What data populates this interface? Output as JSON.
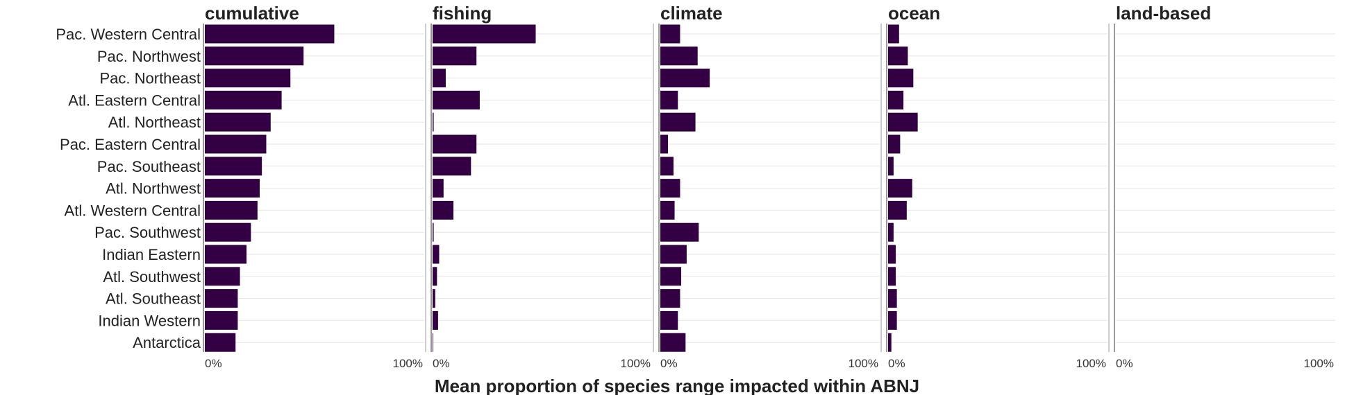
{
  "chart_data": {
    "type": "bar",
    "orientation": "horizontal",
    "xlabel": "Mean proportion of species range impacted within ABNJ",
    "ylabel": "",
    "xlim": [
      0,
      1
    ],
    "tick_labels": [
      "0%",
      "100%"
    ],
    "grid": true,
    "bar_color": "#330044",
    "categories": [
      "Pac. Western Central",
      "Pac. Northwest",
      "Pac. Northeast",
      "Atl. Eastern Central",
      "Atl. Northeast",
      "Pac. Eastern Central",
      "Pac. Southeast",
      "Atl. Northwest",
      "Atl. Western Central",
      "Pac. Southwest",
      "Indian Eastern",
      "Atl. Southwest",
      "Atl. Southeast",
      "Indian Western",
      "Antarctica"
    ],
    "panels": [
      {
        "name": "cumulative",
        "values": [
          0.59,
          0.45,
          0.39,
          0.35,
          0.3,
          0.28,
          0.26,
          0.25,
          0.24,
          0.21,
          0.19,
          0.16,
          0.15,
          0.15,
          0.14
        ]
      },
      {
        "name": "fishing",
        "values": [
          0.47,
          0.2,
          0.06,
          0.215,
          0.005,
          0.2,
          0.175,
          0.05,
          0.095,
          0.005,
          0.03,
          0.02,
          0.012,
          0.025,
          0.003
        ]
      },
      {
        "name": "climate",
        "values": [
          0.09,
          0.17,
          0.225,
          0.08,
          0.16,
          0.035,
          0.06,
          0.09,
          0.065,
          0.175,
          0.12,
          0.095,
          0.09,
          0.08,
          0.115
        ]
      },
      {
        "name": "ocean",
        "values": [
          0.05,
          0.09,
          0.115,
          0.07,
          0.135,
          0.055,
          0.025,
          0.11,
          0.085,
          0.025,
          0.035,
          0.035,
          0.04,
          0.04,
          0.015
        ]
      },
      {
        "name": "land-based",
        "values": [
          0,
          0,
          0,
          0,
          0,
          0,
          0,
          0,
          0,
          0,
          0,
          0,
          0,
          0,
          0
        ]
      }
    ]
  }
}
